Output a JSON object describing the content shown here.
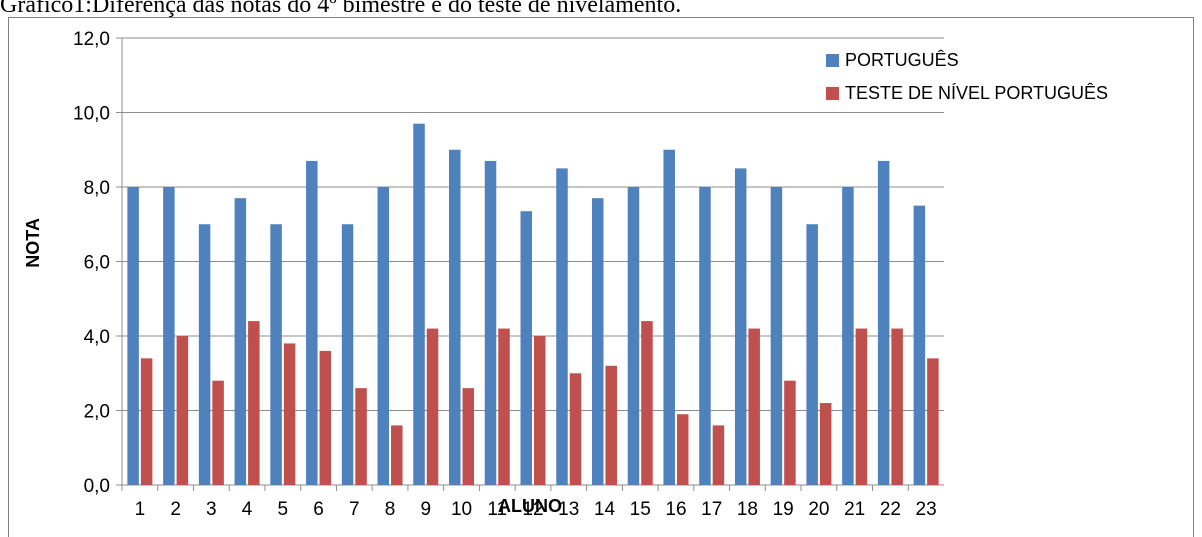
{
  "caption": "Gráfico1:Diferença   das   notas   do   4º   bimestre   e   do   teste   de   nivelamento.",
  "chart_data": {
    "type": "bar",
    "title": "",
    "xlabel": "ALUNO",
    "ylabel": "NOTA",
    "ylim": [
      0,
      12
    ],
    "yticks": [
      "0,0",
      "2,0",
      "4,0",
      "6,0",
      "8,0",
      "10,0",
      "12,0"
    ],
    "grid": true,
    "legend_position": "top-right",
    "categories": [
      "1",
      "2",
      "3",
      "4",
      "5",
      "6",
      "7",
      "8",
      "9",
      "10",
      "11",
      "12",
      "13",
      "14",
      "15",
      "16",
      "17",
      "18",
      "19",
      "20",
      "21",
      "22",
      "23"
    ],
    "series": [
      {
        "name": "PORTUGUÊS",
        "color": "#4F81BD",
        "values": [
          8.0,
          8.0,
          7.0,
          7.7,
          7.0,
          8.7,
          7.0,
          8.0,
          9.7,
          9.0,
          8.7,
          7.35,
          8.5,
          7.7,
          8.0,
          9.0,
          8.0,
          8.5,
          8.0,
          7.0,
          8.0,
          8.7,
          7.5
        ]
      },
      {
        "name": "TESTE DE NÍVEL PORTUGUÊS",
        "color": "#C0504D",
        "values": [
          3.4,
          4.0,
          2.8,
          4.4,
          3.8,
          3.6,
          2.6,
          1.6,
          4.2,
          2.6,
          4.2,
          4.0,
          3.0,
          3.2,
          4.4,
          1.9,
          1.6,
          4.2,
          2.8,
          2.2,
          4.2,
          4.2,
          3.4
        ]
      }
    ]
  }
}
